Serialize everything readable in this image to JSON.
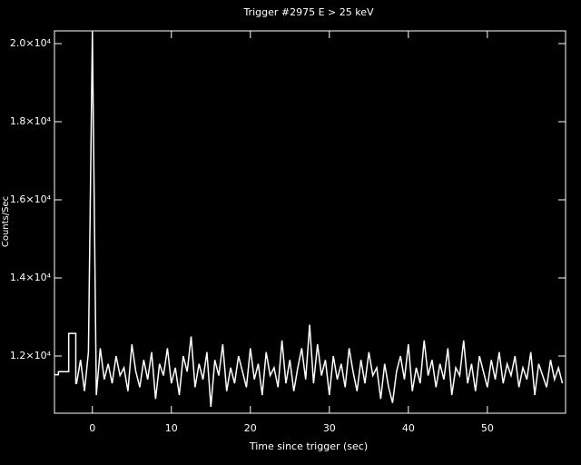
{
  "chart_data": {
    "type": "line",
    "title": "Trigger #2975 E > 25 keV",
    "x_label": "Time since trigger (sec)",
    "y_label": "Counts/Sec",
    "xlim": [
      -4.8,
      59.9
    ],
    "ylim": [
      10535,
      20326
    ],
    "xticks": [
      0,
      10,
      20,
      30,
      40,
      50
    ],
    "yticks": [
      {
        "value": 12000,
        "label": "1.2×10⁴"
      },
      {
        "value": 14000,
        "label": "1.4×10⁴"
      },
      {
        "value": 16000,
        "label": "1.6×10⁴"
      },
      {
        "value": 18000,
        "label": "1.8×10⁴"
      },
      {
        "value": 20000,
        "label": "2.0×10⁴"
      }
    ],
    "series": [
      {
        "color": "#ffffff",
        "x": [
          -4.8,
          -4.3,
          -4.3,
          -3.0,
          -3.0,
          -2.1,
          -2.1,
          -2.0,
          -1.5,
          -1.0,
          -0.5,
          0.0,
          0.5,
          1.0,
          1.5,
          2.0,
          2.5,
          3.0,
          3.5,
          4.0,
          4.5,
          5.0,
          5.5,
          6.0,
          6.5,
          7.0,
          7.5,
          8.0,
          8.5,
          9.0,
          9.5,
          10.0,
          10.5,
          11.0,
          11.5,
          12.0,
          12.5,
          13.0,
          13.5,
          14.0,
          14.5,
          15.0,
          15.5,
          16.0,
          16.5,
          17.0,
          17.5,
          18.0,
          18.5,
          19.0,
          19.5,
          20.0,
          20.5,
          21.0,
          21.5,
          22.0,
          22.5,
          23.0,
          23.5,
          24.0,
          24.5,
          25.0,
          25.5,
          26.0,
          26.5,
          27.0,
          27.5,
          28.0,
          28.5,
          29.0,
          29.5,
          30.0,
          30.5,
          31.0,
          31.5,
          32.0,
          32.5,
          33.0,
          33.5,
          34.0,
          34.5,
          35.0,
          35.5,
          36.0,
          36.5,
          37.0,
          37.5,
          38.0,
          38.5,
          39.0,
          39.5,
          40.0,
          40.5,
          41.0,
          41.5,
          42.0,
          42.5,
          43.0,
          43.5,
          44.0,
          44.5,
          45.0,
          45.5,
          46.0,
          46.5,
          47.0,
          47.5,
          48.0,
          48.5,
          49.0,
          49.5,
          50.0,
          50.5,
          51.0,
          51.5,
          52.0,
          52.5,
          53.0,
          53.5,
          54.0,
          54.5,
          55.0,
          55.5,
          56.0,
          56.5,
          57.0,
          57.5,
          58.0,
          58.5,
          59.0,
          59.5
        ],
        "values": [
          11520,
          11520,
          11600,
          11600,
          12580,
          12580,
          11300,
          11300,
          11900,
          11100,
          12100,
          20300,
          11000,
          12200,
          11400,
          11800,
          11300,
          12000,
          11500,
          11700,
          11100,
          12300,
          11600,
          11200,
          11900,
          11400,
          12100,
          10900,
          11800,
          11500,
          12200,
          11300,
          11700,
          11000,
          12000,
          11600,
          12500,
          11200,
          11800,
          11400,
          12100,
          10700,
          11900,
          11500,
          12300,
          11100,
          11700,
          11300,
          12000,
          11600,
          11200,
          12200,
          11400,
          11800,
          11000,
          12100,
          11500,
          11700,
          11200,
          12400,
          11300,
          11900,
          11100,
          11700,
          12200,
          11400,
          12800,
          11300,
          12300,
          11500,
          11900,
          11000,
          12000,
          11400,
          11800,
          11200,
          12200,
          11600,
          11100,
          11900,
          11300,
          12100,
          11500,
          11700,
          10900,
          11800,
          11200,
          10800,
          11600,
          12000,
          11400,
          12300,
          11100,
          11700,
          11300,
          12400,
          11500,
          11900,
          11200,
          11800,
          11400,
          12200,
          11000,
          11700,
          11500,
          12400,
          11300,
          11800,
          11100,
          12000,
          11600,
          11200,
          11900,
          11400,
          12100,
          11300,
          11800,
          11500,
          12000,
          11200,
          11700,
          11400,
          12100,
          11000,
          11800,
          11500,
          11200,
          11900,
          11400,
          11700,
          11300
        ]
      }
    ]
  }
}
